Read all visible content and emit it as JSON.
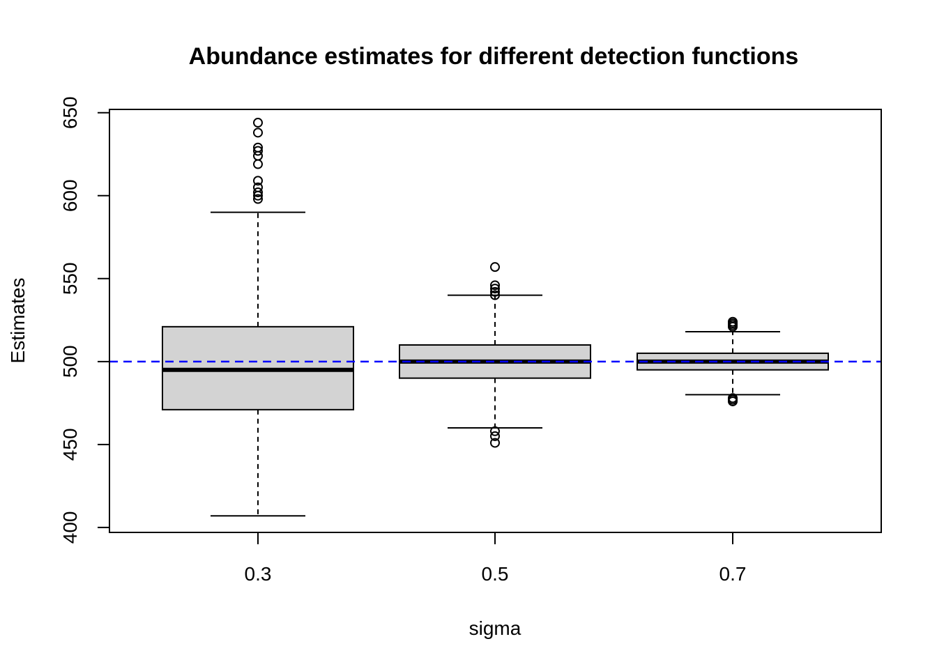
{
  "chart_data": {
    "type": "boxplot",
    "title": "Abundance estimates for different detection functions",
    "xlabel": "sigma",
    "ylabel": "Estimates",
    "ylim": [
      397,
      652
    ],
    "yticks": [
      400,
      450,
      500,
      550,
      600,
      650
    ],
    "categories": [
      "0.3",
      "0.5",
      "0.7"
    ],
    "boxes": [
      {
        "category": "0.3",
        "whisker_low": 407,
        "q1": 471,
        "median": 495,
        "q3": 521,
        "whisker_high": 590,
        "outliers": [
          598,
          600,
          602,
          605,
          609,
          619,
          624,
          627,
          629,
          638,
          644
        ]
      },
      {
        "category": "0.5",
        "whisker_low": 460,
        "q1": 490,
        "median": 500,
        "q3": 510,
        "whisker_high": 540,
        "outliers": [
          451,
          455,
          458,
          540,
          542,
          544,
          546,
          557
        ]
      },
      {
        "category": "0.7",
        "whisker_low": 480,
        "q1": 495,
        "median": 500,
        "q3": 505,
        "whisker_high": 518,
        "outliers": [
          476,
          477,
          478,
          521,
          522,
          523,
          524
        ]
      }
    ],
    "reference_line": {
      "y": 500,
      "style": "dashed",
      "color": "#0000ff"
    },
    "box_fill": "#d3d3d3",
    "grid": false,
    "legend": "none"
  }
}
